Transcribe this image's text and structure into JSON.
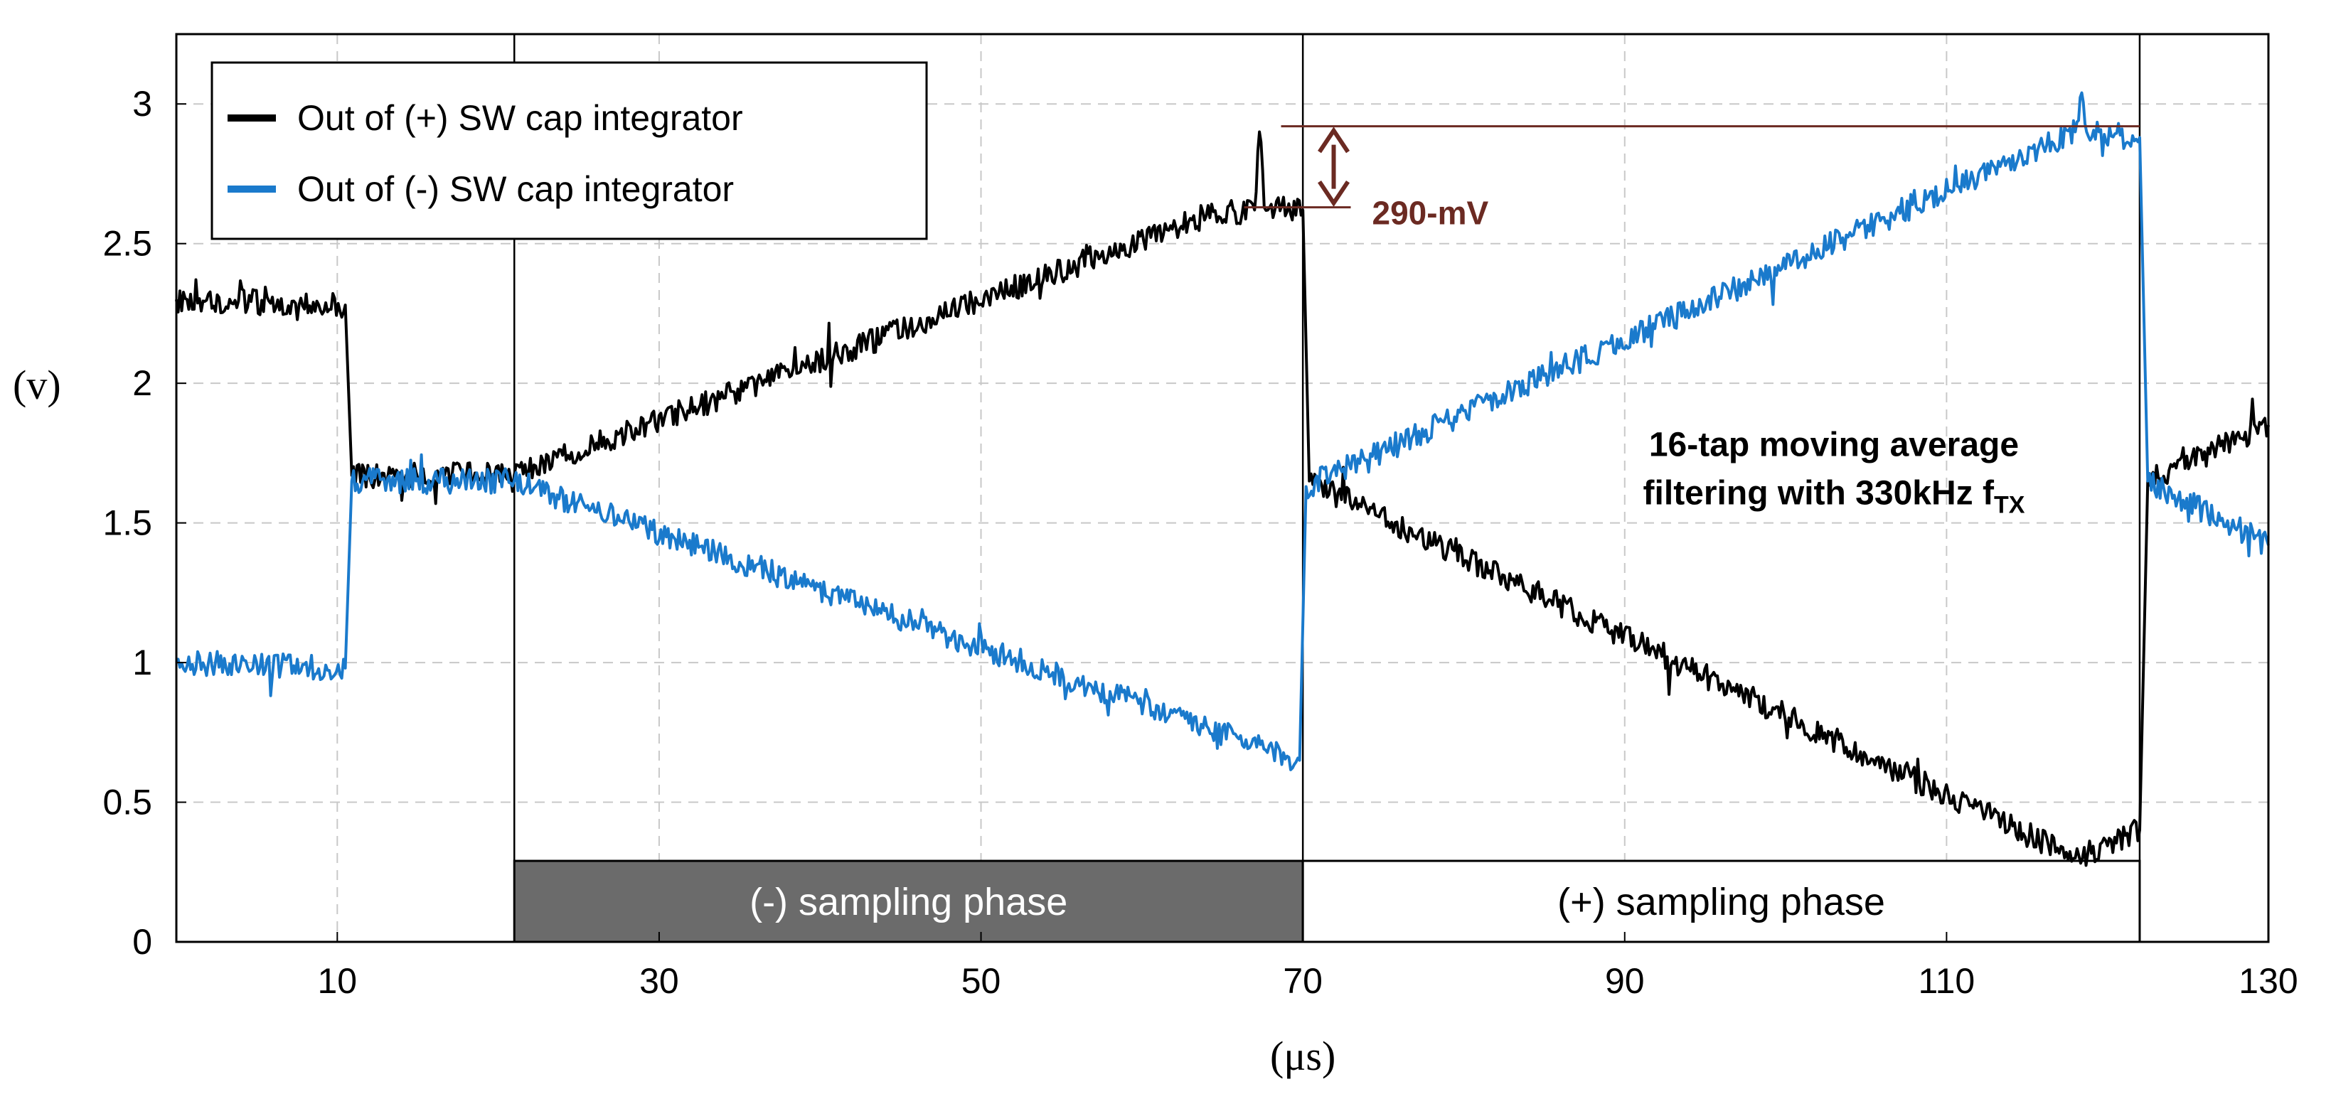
{
  "chart_data": {
    "type": "line",
    "title": "",
    "xlabel": "(μs)",
    "ylabel": "(v)",
    "xlim": [
      0,
      130
    ],
    "ylim": [
      0,
      3.25
    ],
    "xticks": [
      10,
      30,
      50,
      70,
      90,
      110,
      130
    ],
    "xtick_labels": [
      "10",
      "30",
      "50",
      "70",
      "90",
      "110",
      "130"
    ],
    "yticks": [
      0,
      0.5,
      1,
      1.5,
      2,
      2.5,
      3
    ],
    "ytick_labels": [
      "0",
      "0.5",
      "1",
      "1.5",
      "2",
      "2.5",
      "3"
    ],
    "grid": true,
    "legend_position": "top-left",
    "series": [
      {
        "name": "Out of (+) SW cap integrator",
        "color": "#000000",
        "x": [
          0,
          10.5,
          10.9,
          21,
          64,
          67,
          67.3,
          67.6,
          70,
          70.4,
          118,
          122,
          122.5,
          130
        ],
        "y": [
          2.3,
          2.28,
          1.67,
          1.67,
          2.6,
          2.62,
          2.9,
          2.63,
          2.62,
          1.65,
          0.3,
          0.4,
          1.65,
          1.85
        ]
      },
      {
        "name": "Out of (-) SW cap integrator",
        "color": "#1a7acc",
        "x": [
          0,
          10.5,
          10.9,
          21,
          69.8,
          70.2,
          118,
          118.4,
          118.7,
          122,
          122.5,
          130
        ],
        "y": [
          1.0,
          0.98,
          1.65,
          1.65,
          0.65,
          1.63,
          2.9,
          3.04,
          2.9,
          2.88,
          1.65,
          1.42
        ]
      }
    ],
    "phases": [
      {
        "label": "(-) sampling phase",
        "x_start": 21,
        "x_end": 70,
        "color": "#6b6b6b",
        "text_color": "#ffffff"
      },
      {
        "label": "(+) sampling phase",
        "x_start": 70,
        "x_end": 122,
        "color": "#ffffff",
        "text_color": "#000000"
      }
    ],
    "phase_y_range": [
      0,
      0.29
    ],
    "phase_boundary_x": [
      21,
      70,
      122
    ],
    "annotations": [
      {
        "name": "delta",
        "label": "290-mV",
        "x_from": 69,
        "x_to": 122,
        "y_low": 2.63,
        "y_high": 2.92,
        "color": "#6b2a22"
      },
      {
        "name": "filter-note",
        "lines": [
          "16-tap moving average",
          "filtering with 330kHz f"
        ],
        "subscript": "TX",
        "x": 103,
        "y": 1.74
      }
    ]
  }
}
